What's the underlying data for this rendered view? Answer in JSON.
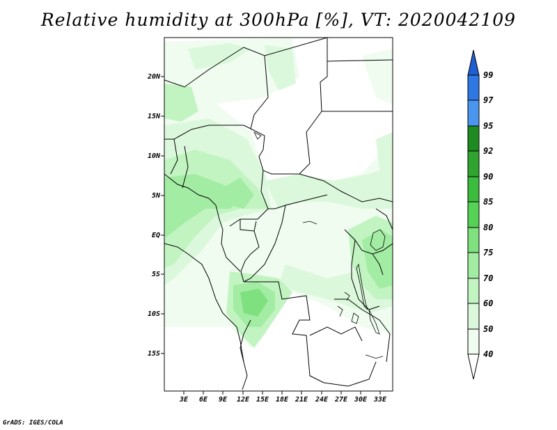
{
  "title": "Relative humidity at 300hPa [%], VT: 2020042109",
  "credit": "GrADS: IGES/COLA",
  "map": {
    "region": "Central Africa",
    "lat_labels": [
      "20N",
      "15N",
      "10N",
      "5N",
      "EQ",
      "5S",
      "10S",
      "15S"
    ],
    "lon_labels": [
      "3E",
      "6E",
      "9E",
      "12E",
      "15E",
      "18E",
      "21E",
      "24E",
      "27E",
      "30E",
      "33E"
    ]
  },
  "colorbar": {
    "levels": [
      "99",
      "97",
      "95",
      "92",
      "90",
      "85",
      "80",
      "75",
      "70",
      "60",
      "50",
      "40"
    ],
    "colors": {
      "above_99": "#1e5fd2",
      "97_99": "#2f78e4",
      "95_97": "#4a95ee",
      "92_95": "#1f8a1f",
      "90_92": "#2fa52f",
      "85_90": "#3cbc3c",
      "80_85": "#55d255",
      "75_80": "#7ee07e",
      "70_75": "#a3eca3",
      "60_70": "#c2f4c2",
      "50_60": "#dcf8dc",
      "40_50": "#effcef",
      "below_40": "#ffffff"
    }
  }
}
